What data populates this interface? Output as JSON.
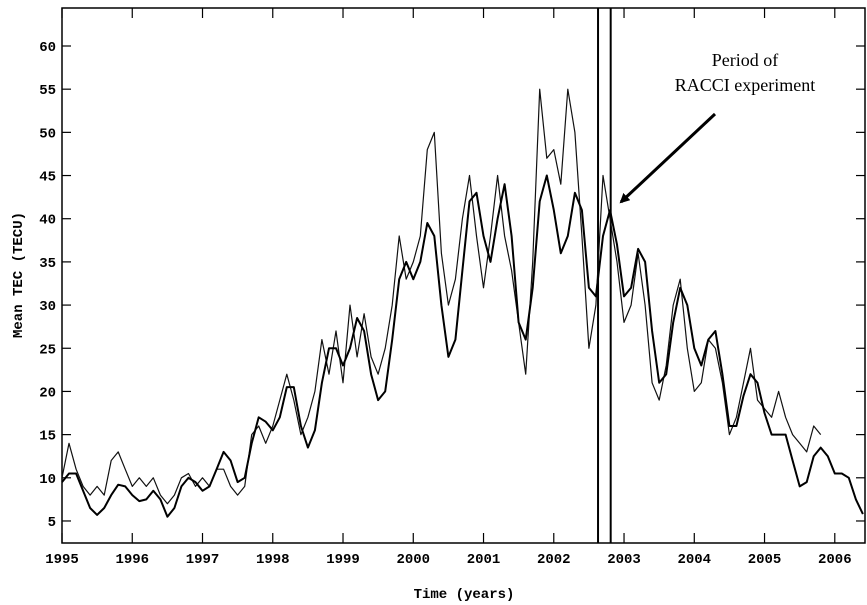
{
  "chart_data": {
    "type": "line",
    "xlabel": "Time (years)",
    "ylabel": "Mean TEC (TECU)",
    "annotation": [
      "Period of",
      "RACCI experiment"
    ],
    "highlight_period": [
      2002.63,
      2002.81
    ],
    "x": [
      1995.0,
      1995.1,
      1995.2,
      1995.3,
      1995.4,
      1995.5,
      1995.6,
      1995.7,
      1995.8,
      1995.9,
      1996.0,
      1996.1,
      1996.2,
      1996.3,
      1996.4,
      1996.5,
      1996.6,
      1996.7,
      1996.8,
      1996.9,
      1997.0,
      1997.1,
      1997.2,
      1997.3,
      1997.4,
      1997.5,
      1997.6,
      1997.7,
      1997.8,
      1997.9,
      1998.0,
      1998.1,
      1998.2,
      1998.3,
      1998.4,
      1998.5,
      1998.6,
      1998.7,
      1998.8,
      1998.9,
      1999.0,
      1999.1,
      1999.2,
      1999.3,
      1999.4,
      1999.5,
      1999.6,
      1999.7,
      1999.8,
      1999.9,
      2000.0,
      2000.1,
      2000.2,
      2000.3,
      2000.4,
      2000.5,
      2000.6,
      2000.7,
      2000.8,
      2000.9,
      2001.0,
      2001.1,
      2001.2,
      2001.3,
      2001.4,
      2001.5,
      2001.6,
      2001.7,
      2001.8,
      2001.9,
      2002.0,
      2002.1,
      2002.2,
      2002.3,
      2002.4,
      2002.5,
      2002.6,
      2002.7,
      2002.8,
      2002.9,
      2003.0,
      2003.1,
      2003.2,
      2003.3,
      2003.4,
      2003.5,
      2003.6,
      2003.7,
      2003.8,
      2003.9,
      2004.0,
      2004.1,
      2004.2,
      2004.3,
      2004.4,
      2004.5,
      2004.6,
      2004.7,
      2004.8,
      2004.9,
      2005.0,
      2005.1,
      2005.2,
      2005.3,
      2005.4,
      2005.5,
      2005.6,
      2005.7,
      2005.8,
      2005.9,
      2006.0,
      2006.1,
      2006.2,
      2006.3,
      2006.4
    ],
    "series": [
      {
        "color": "#111111",
        "width": 1.2,
        "values": [
          10,
          14,
          11,
          9,
          8,
          9,
          8,
          12,
          13,
          11,
          9,
          10,
          9,
          10,
          8,
          7,
          8,
          10,
          10.5,
          9,
          10,
          9,
          11,
          11,
          9,
          8,
          9,
          15,
          16,
          14,
          16,
          19,
          22,
          19,
          15,
          17,
          20,
          26,
          22,
          27,
          21,
          30,
          24,
          29,
          24,
          22,
          25,
          30,
          38,
          33,
          35,
          38,
          48,
          50,
          36,
          30,
          33,
          40,
          45,
          38,
          32,
          38,
          45,
          38,
          34,
          28,
          22,
          35,
          55,
          47,
          48,
          44,
          55,
          50,
          38,
          25,
          30,
          45,
          40,
          35,
          28,
          30,
          36,
          30,
          21,
          19,
          23,
          30,
          33,
          25,
          20,
          21,
          26,
          25,
          21,
          15,
          17,
          21,
          25,
          19,
          18,
          17,
          20,
          17,
          15,
          14,
          13,
          16,
          15,
          null,
          null,
          null,
          null,
          null,
          null
        ]
      },
      {
        "color": "#000000",
        "width": 2,
        "values": [
          9.5,
          10.5,
          10.5,
          8.5,
          6.5,
          5.7,
          6.5,
          8,
          9.2,
          9,
          8,
          7.3,
          7.5,
          8.5,
          7.5,
          5.5,
          6.5,
          9,
          10,
          9.5,
          8.5,
          9,
          11,
          13,
          12,
          9.5,
          10,
          14,
          17,
          16.5,
          15.5,
          17,
          20.5,
          20.5,
          16,
          13.5,
          15.5,
          21,
          25,
          25,
          23,
          25,
          28.5,
          27,
          22,
          19,
          20,
          26,
          33,
          35,
          33,
          35,
          39.5,
          38,
          30,
          24,
          26,
          34,
          42,
          43,
          38,
          35,
          40,
          44,
          38,
          28,
          26,
          32,
          42,
          45,
          41,
          36,
          38,
          43,
          41,
          32,
          31,
          38,
          41,
          37,
          31,
          32,
          36.5,
          35,
          27,
          21,
          22,
          28,
          32,
          30,
          25,
          23,
          26,
          27,
          22,
          16,
          16,
          19.5,
          22,
          21,
          17.5,
          15,
          15,
          15,
          12,
          9,
          9.5,
          12.5,
          13.5,
          12.5,
          10.5,
          10.5,
          10,
          7.5,
          5.8
        ]
      }
    ],
    "xlim": [
      1995,
      2006.43
    ],
    "ylim": [
      2.45,
      64.4
    ],
    "xticks": [
      1995,
      1996,
      1997,
      1998,
      1999,
      2000,
      2001,
      2002,
      2003,
      2004,
      2005,
      2006
    ],
    "yticks": [
      5,
      10,
      15,
      20,
      25,
      30,
      35,
      40,
      45,
      50,
      55,
      60
    ]
  }
}
